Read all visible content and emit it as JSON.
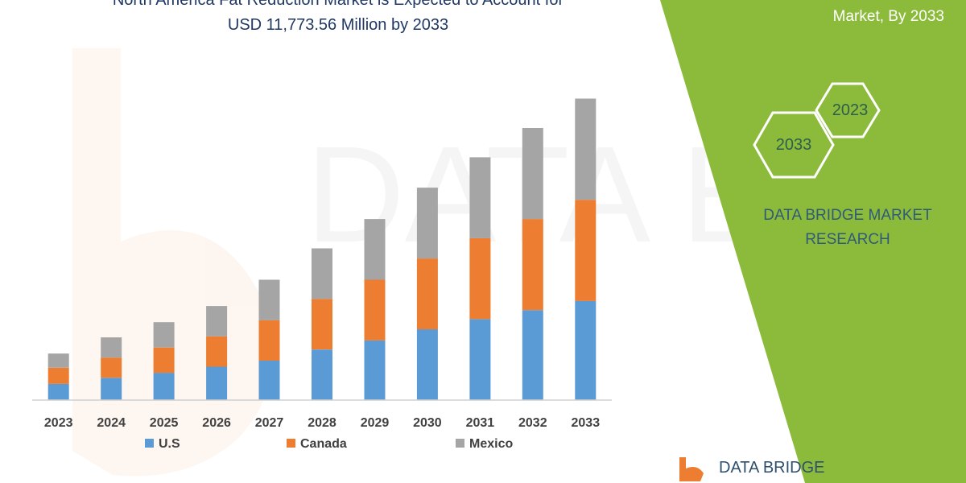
{
  "header": {
    "title_line1": "North America Fat Reduction Market is Expected to Account for",
    "title_line2": "USD 11,773.56 Million by 2033"
  },
  "side_panel": {
    "title": "Market, By 2033",
    "hexagons": [
      "2023",
      "2033"
    ],
    "brand_line1": "DATA BRIDGE MARKET",
    "brand_line2": "RESEARCH",
    "footer_logo": "DATA BRIDGE",
    "panel_color": "#8cbb3c"
  },
  "chart_data": {
    "type": "bar",
    "stacked": true,
    "categories": [
      "2023",
      "2024",
      "2025",
      "2026",
      "2027",
      "2028",
      "2029",
      "2030",
      "2031",
      "2032",
      "2033"
    ],
    "series": [
      {
        "name": "U.S",
        "color": "#5b9bd5",
        "values": [
          1.6,
          2.2,
          2.7,
          3.3,
          3.9,
          5.0,
          5.9,
          7.0,
          8.0,
          8.9,
          9.8
        ]
      },
      {
        "name": "Canada",
        "color": "#ed7d31",
        "values": [
          1.6,
          2.0,
          2.5,
          3.0,
          4.0,
          5.0,
          6.0,
          7.0,
          8.0,
          9.0,
          10.0
        ]
      },
      {
        "name": "Mexico",
        "color": "#a5a5a5",
        "values": [
          1.4,
          2.0,
          2.5,
          3.0,
          4.0,
          5.0,
          6.0,
          7.0,
          8.0,
          9.0,
          10.0
        ]
      }
    ],
    "ylim": [
      0,
      30
    ],
    "grid": false,
    "legend_position": "bottom"
  }
}
